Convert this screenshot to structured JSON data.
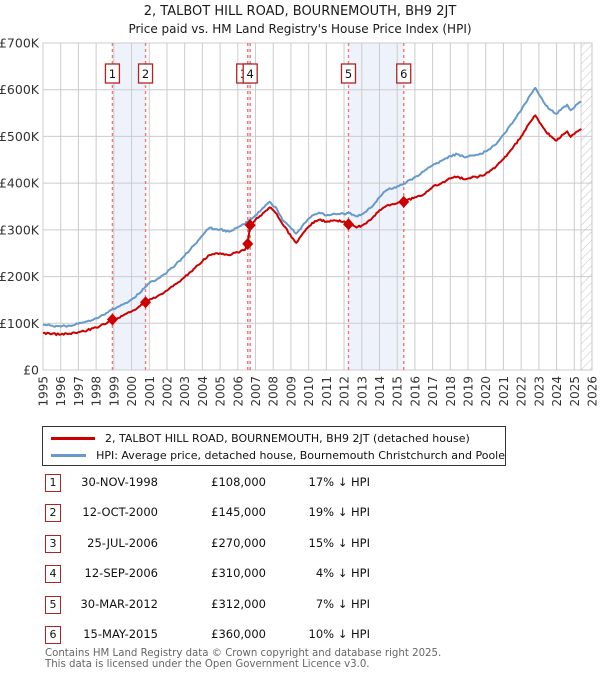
{
  "chart_data": {
    "type": "line",
    "title": "2, TALBOT HILL ROAD, BOURNEMOUTH, BH9 2JT",
    "subtitle": "Price paid vs. HM Land Registry's House Price Index (HPI)",
    "ylabel": "",
    "xlabel": "",
    "ylim_gbp": [
      0,
      700000
    ],
    "xlim_years": [
      1995,
      2026
    ],
    "grid": true,
    "y_ticks": [
      {
        "value_k": 0,
        "label": "£0"
      },
      {
        "value_k": 100,
        "label": "£100K"
      },
      {
        "value_k": 200,
        "label": "£200K"
      },
      {
        "value_k": 300,
        "label": "£300K"
      },
      {
        "value_k": 400,
        "label": "£400K"
      },
      {
        "value_k": 500,
        "label": "£500K"
      },
      {
        "value_k": 600,
        "label": "£600K"
      },
      {
        "value_k": 700,
        "label": "£700K"
      }
    ],
    "x_ticks": [
      1995,
      1996,
      1997,
      1998,
      1999,
      2000,
      2001,
      2002,
      2003,
      2004,
      2005,
      2006,
      2007,
      2008,
      2009,
      2010,
      2011,
      2012,
      2013,
      2014,
      2015,
      2016,
      2017,
      2018,
      2019,
      2020,
      2021,
      2022,
      2023,
      2024,
      2025,
      2026
    ],
    "series": [
      {
        "name": "2, TALBOT HILL ROAD, BOURNEMOUTH, BH9 2JT (detached house)",
        "color": "#cc0000",
        "points_year_gbp_k": [
          [
            1995,
            79
          ],
          [
            1995.5,
            77
          ],
          [
            1996,
            76
          ],
          [
            1996.5,
            78
          ],
          [
            1997,
            81
          ],
          [
            1997.5,
            85
          ],
          [
            1998,
            91
          ],
          [
            1998.5,
            98
          ],
          [
            1998.92,
            108
          ],
          [
            1999.5,
            116
          ],
          [
            2000,
            125
          ],
          [
            2000.4,
            135
          ],
          [
            2000.79,
            145
          ],
          [
            2001,
            150
          ],
          [
            2001.5,
            159
          ],
          [
            2002,
            170
          ],
          [
            2002.5,
            184
          ],
          [
            2003,
            199
          ],
          [
            2003.5,
            216
          ],
          [
            2004,
            233
          ],
          [
            2004.4,
            246
          ],
          [
            2005,
            250
          ],
          [
            2005.5,
            246
          ],
          [
            2006,
            252
          ],
          [
            2006.4,
            257
          ],
          [
            2006.56,
            270
          ],
          [
            2006.7,
            310
          ],
          [
            2007,
            322
          ],
          [
            2007.5,
            338
          ],
          [
            2007.8,
            348
          ],
          [
            2008.2,
            334
          ],
          [
            2008.6,
            308
          ],
          [
            2009.3,
            272
          ],
          [
            2009.8,
            298
          ],
          [
            2010.2,
            315
          ],
          [
            2010.6,
            322
          ],
          [
            2011,
            317
          ],
          [
            2011.5,
            320
          ],
          [
            2012,
            318
          ],
          [
            2012.25,
            312
          ],
          [
            2012.7,
            305
          ],
          [
            2013,
            309
          ],
          [
            2013.5,
            321
          ],
          [
            2014,
            342
          ],
          [
            2014.4,
            352
          ],
          [
            2015,
            357
          ],
          [
            2015.37,
            360
          ],
          [
            2016,
            370
          ],
          [
            2016.5,
            376
          ],
          [
            2017,
            392
          ],
          [
            2017.5,
            400
          ],
          [
            2018,
            410
          ],
          [
            2018.4,
            414
          ],
          [
            2018.8,
            408
          ],
          [
            2019.2,
            412
          ],
          [
            2019.6,
            414
          ],
          [
            2020,
            420
          ],
          [
            2020.5,
            432
          ],
          [
            2021,
            452
          ],
          [
            2021.5,
            474
          ],
          [
            2022,
            500
          ],
          [
            2022.5,
            530
          ],
          [
            2022.8,
            545
          ],
          [
            2023.1,
            527
          ],
          [
            2023.4,
            510
          ],
          [
            2023.7,
            500
          ],
          [
            2024,
            491
          ],
          [
            2024.3,
            503
          ],
          [
            2024.6,
            511
          ],
          [
            2024.8,
            499
          ],
          [
            2025,
            505
          ],
          [
            2025.2,
            511
          ],
          [
            2025.4,
            516
          ]
        ]
      },
      {
        "name": "HPI: Average price, detached house, Bournemouth Christchurch and Poole",
        "color": "#6699cc",
        "points_year_gbp_k": [
          [
            1995,
            97
          ],
          [
            1995.5,
            95
          ],
          [
            1996,
            93
          ],
          [
            1996.5,
            95
          ],
          [
            1997,
            99
          ],
          [
            1997.5,
            104
          ],
          [
            1998,
            111
          ],
          [
            1998.5,
            119
          ],
          [
            1998.92,
            130
          ],
          [
            1999.5,
            140
          ],
          [
            2000,
            151
          ],
          [
            2000.4,
            163
          ],
          [
            2000.79,
            178
          ],
          [
            2001,
            186
          ],
          [
            2001.5,
            196
          ],
          [
            2002,
            209
          ],
          [
            2002.5,
            226
          ],
          [
            2003,
            245
          ],
          [
            2003.5,
            266
          ],
          [
            2004,
            288
          ],
          [
            2004.4,
            304
          ],
          [
            2005,
            301
          ],
          [
            2005.5,
            296
          ],
          [
            2006,
            305
          ],
          [
            2006.56,
            317
          ],
          [
            2006.7,
            322
          ],
          [
            2007,
            331
          ],
          [
            2007.5,
            349
          ],
          [
            2007.8,
            360
          ],
          [
            2008.2,
            345
          ],
          [
            2008.6,
            318
          ],
          [
            2009.3,
            292
          ],
          [
            2009.8,
            315
          ],
          [
            2010.2,
            331
          ],
          [
            2010.6,
            337
          ],
          [
            2011,
            331
          ],
          [
            2011.5,
            334
          ],
          [
            2012,
            334
          ],
          [
            2012.25,
            336
          ],
          [
            2012.7,
            329
          ],
          [
            2013,
            333
          ],
          [
            2013.5,
            347
          ],
          [
            2014,
            370
          ],
          [
            2014.4,
            385
          ],
          [
            2015,
            393
          ],
          [
            2015.37,
            398
          ],
          [
            2016,
            413
          ],
          [
            2016.5,
            425
          ],
          [
            2017,
            438
          ],
          [
            2017.5,
            448
          ],
          [
            2018,
            458
          ],
          [
            2018.4,
            462
          ],
          [
            2018.8,
            455
          ],
          [
            2019.2,
            459
          ],
          [
            2019.6,
            461
          ],
          [
            2020,
            468
          ],
          [
            2020.5,
            481
          ],
          [
            2021,
            504
          ],
          [
            2021.5,
            528
          ],
          [
            2022,
            556
          ],
          [
            2022.5,
            588
          ],
          [
            2022.8,
            604
          ],
          [
            2023.1,
            585
          ],
          [
            2023.4,
            566
          ],
          [
            2023.7,
            556
          ],
          [
            2024,
            548
          ],
          [
            2024.3,
            560
          ],
          [
            2024.6,
            568
          ],
          [
            2024.8,
            556
          ],
          [
            2025,
            562
          ],
          [
            2025.2,
            570
          ],
          [
            2025.4,
            574
          ]
        ]
      }
    ],
    "sales": [
      {
        "n": "1",
        "year": 1998.92,
        "price_k": 108
      },
      {
        "n": "2",
        "year": 2000.79,
        "price_k": 145
      },
      {
        "n": "3",
        "year": 2006.56,
        "price_k": 270
      },
      {
        "n": "4",
        "year": 2006.7,
        "price_k": 310
      },
      {
        "n": "5",
        "year": 2012.25,
        "price_k": 312
      },
      {
        "n": "6",
        "year": 2015.37,
        "price_k": 360
      }
    ],
    "ownership_bands": [
      [
        1998.92,
        2000.79
      ],
      [
        2006.56,
        2006.7
      ],
      [
        2012.25,
        2015.37
      ]
    ],
    "future_hatch_years": [
      2025.38,
      2026
    ],
    "legend_position": "below"
  },
  "legend": {
    "entries": [
      {
        "label": "2, TALBOT HILL ROAD, BOURNEMOUTH, BH9 2JT (detached house)",
        "color": "#cc0000"
      },
      {
        "label": "HPI: Average price, detached house, Bournemouth Christchurch and Poole",
        "color": "#6699cc"
      }
    ]
  },
  "table": {
    "rows": [
      {
        "num": "1",
        "date": "30-NOV-1998",
        "price": "£108,000",
        "hpi": "17% ↓ HPI"
      },
      {
        "num": "2",
        "date": "12-OCT-2000",
        "price": "£145,000",
        "hpi": "19% ↓ HPI"
      },
      {
        "num": "3",
        "date": "25-JUL-2006",
        "price": "£270,000",
        "hpi": "15% ↓ HPI"
      },
      {
        "num": "4",
        "date": "12-SEP-2006",
        "price": "£310,000",
        "hpi": "4% ↓ HPI"
      },
      {
        "num": "5",
        "date": "30-MAR-2012",
        "price": "£312,000",
        "hpi": "7% ↓ HPI"
      },
      {
        "num": "6",
        "date": "15-MAY-2015",
        "price": "£360,000",
        "hpi": "10% ↓ HPI"
      }
    ]
  },
  "footer": {
    "line1": "Contains HM Land Registry data © Crown copyright and database right 2025.",
    "line2": "This data is licensed under the Open Government Licence v3.0."
  },
  "colors": {
    "price_line": "#cc0000",
    "hpi_line": "#6699cc",
    "sale_dash": "#ee7777",
    "band_fill": "#eef2fb",
    "grid": "#cccccc",
    "hatch": "#c6c6c6",
    "box_border": "#b22222",
    "tick_text": "#333333"
  }
}
